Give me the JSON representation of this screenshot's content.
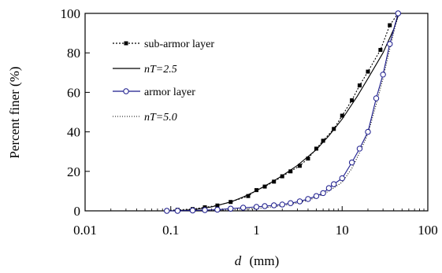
{
  "chart_data": {
    "type": "line",
    "xscale": "log",
    "xlim": [
      0.01,
      100
    ],
    "ylim": [
      0,
      100
    ],
    "xticks": [
      0.01,
      0.1,
      1,
      10,
      100
    ],
    "xtick_labels": [
      "0.01",
      "0.1",
      "1",
      "10",
      "100"
    ],
    "yticks": [
      0,
      20,
      40,
      60,
      80,
      100
    ],
    "ytick_labels": [
      "0",
      "20",
      "40",
      "60",
      "80",
      "100"
    ],
    "xlabel_var": "d",
    "xlabel_unit": "(mm)",
    "ylabel": "Percent finer (%)",
    "grid": false,
    "legend_position": "top-left",
    "series": [
      {
        "name": "sub-armor layer",
        "style": "dotted-line-square-markers",
        "color": "#000000",
        "x": [
          0.09,
          0.12,
          0.18,
          0.25,
          0.35,
          0.5,
          0.8,
          1.0,
          1.25,
          1.6,
          2.0,
          2.5,
          3.2,
          4.0,
          5.0,
          6.0,
          8.0,
          10.0,
          13.0,
          16.0,
          20.0,
          28.0,
          36.0,
          45.0
        ],
        "y": [
          0.2,
          0.5,
          0.9,
          1.8,
          2.7,
          4.5,
          7.5,
          10.5,
          12.3,
          14.8,
          17.5,
          20.0,
          22.8,
          26.5,
          31.5,
          35.5,
          41.5,
          48.2,
          56.0,
          63.5,
          70.5,
          81.5,
          94.0,
          100.0
        ]
      },
      {
        "name": "nT=2.5",
        "style": "solid-line",
        "color": "#000000",
        "x": [
          0.1,
          0.15,
          0.2,
          0.3,
          0.5,
          0.7,
          1.0,
          1.5,
          2.0,
          3.0,
          5.0,
          7.0,
          10.0,
          15.0,
          20.0,
          30.0,
          40.0,
          46.0
        ],
        "y": [
          0.0,
          0.3,
          0.8,
          2.0,
          4.5,
          7.0,
          10.2,
          14.5,
          17.8,
          23.0,
          31.0,
          38.0,
          46.5,
          58.0,
          67.0,
          80.0,
          92.0,
          100.0
        ]
      },
      {
        "name": "armor layer",
        "style": "solid-line-open-circle-markers",
        "color": "#1a1a8c",
        "x": [
          0.09,
          0.12,
          0.18,
          0.25,
          0.35,
          0.5,
          0.7,
          1.0,
          1.25,
          1.6,
          2.0,
          2.5,
          3.2,
          4.0,
          5.0,
          6.0,
          7.0,
          8.0,
          10.0,
          13.0,
          16.0,
          20.0,
          25.0,
          30.0,
          36.0,
          45.0
        ],
        "y": [
          0.0,
          0.0,
          0.2,
          0.4,
          0.6,
          1.1,
          1.6,
          2.0,
          2.4,
          2.8,
          3.2,
          3.9,
          4.8,
          6.0,
          7.5,
          9.0,
          11.5,
          13.5,
          16.5,
          24.5,
          31.5,
          40.0,
          57.0,
          69.0,
          84.5,
          100.0
        ]
      },
      {
        "name": "nT=5.0",
        "style": "dotted-line",
        "color": "#000000",
        "x": [
          0.1,
          0.2,
          0.5,
          1.0,
          2.0,
          3.0,
          4.0,
          5.0,
          7.0,
          10.0,
          13.0,
          16.0,
          20.0,
          25.0,
          30.0,
          36.0,
          42.0,
          46.0
        ],
        "y": [
          0.0,
          0.1,
          0.5,
          1.2,
          2.6,
          4.0,
          5.4,
          6.8,
          10.0,
          14.5,
          21.5,
          29.5,
          39.0,
          54.0,
          67.0,
          82.0,
          94.0,
          100.0
        ]
      }
    ]
  }
}
